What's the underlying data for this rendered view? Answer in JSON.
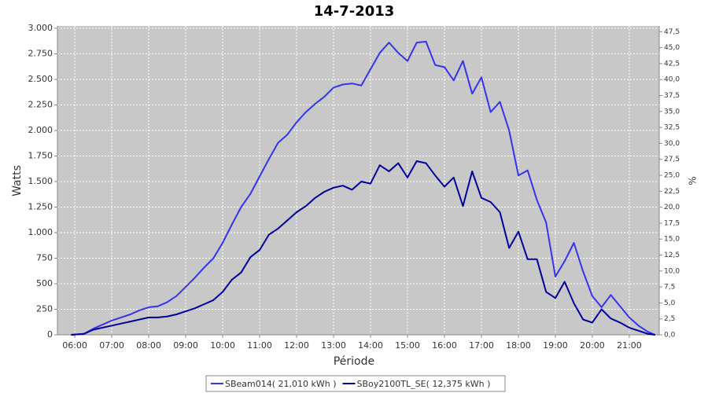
{
  "chart_data": {
    "type": "line",
    "title": "14-7-2013",
    "xlabel": "Période",
    "ylabel": "Watts",
    "y2label": "%",
    "x": [
      5.9,
      6.25,
      6.5,
      6.75,
      7,
      7.25,
      7.5,
      7.75,
      8,
      8.25,
      8.5,
      8.75,
      9,
      9.25,
      9.5,
      9.75,
      10,
      10.25,
      10.5,
      10.75,
      11,
      11.25,
      11.5,
      11.75,
      12,
      12.25,
      12.5,
      12.75,
      13,
      13.25,
      13.5,
      13.75,
      14,
      14.25,
      14.5,
      14.75,
      15,
      15.25,
      15.5,
      15.75,
      16,
      16.25,
      16.5,
      16.75,
      17,
      17.25,
      17.5,
      17.75,
      18,
      18.25,
      18.5,
      18.75,
      19,
      19.25,
      19.5,
      19.75,
      20,
      20.25,
      20.5,
      20.75,
      21,
      21.25,
      21.5,
      21.7
    ],
    "series": [
      {
        "name": "SBeam014( 21,010 kWh )",
        "color": "#3434f0",
        "values": [
          0,
          10,
          60,
          100,
          140,
          170,
          200,
          240,
          270,
          280,
          320,
          380,
          470,
          560,
          660,
          750,
          900,
          1080,
          1250,
          1380,
          1550,
          1720,
          1880,
          1960,
          2080,
          2180,
          2260,
          2330,
          2420,
          2450,
          2460,
          2440,
          2600,
          2760,
          2860,
          2760,
          2680,
          2860,
          2870,
          2640,
          2620,
          2490,
          2680,
          2360,
          2520,
          2180,
          2280,
          2000,
          1560,
          1610,
          1320,
          1100,
          570,
          720,
          900,
          620,
          380,
          270,
          390,
          280,
          170,
          90,
          30,
          0
        ]
      },
      {
        "name": "SBoy2100TL_SE( 12,375 kWh )",
        "color": "#00009c",
        "values": [
          0,
          10,
          50,
          70,
          90,
          110,
          130,
          150,
          170,
          170,
          180,
          200,
          230,
          260,
          300,
          340,
          420,
          540,
          610,
          760,
          830,
          980,
          1040,
          1120,
          1200,
          1260,
          1340,
          1400,
          1440,
          1460,
          1420,
          1500,
          1480,
          1660,
          1600,
          1680,
          1540,
          1700,
          1680,
          1560,
          1450,
          1540,
          1260,
          1600,
          1340,
          1300,
          1200,
          850,
          1010,
          740,
          740,
          420,
          360,
          520,
          310,
          150,
          120,
          250,
          160,
          120,
          70,
          40,
          10,
          0
        ]
      }
    ],
    "xlim": [
      5.53,
      21.81
    ],
    "xticks": [
      {
        "value": 6,
        "label": "06:00"
      },
      {
        "value": 7,
        "label": "07:00"
      },
      {
        "value": 8,
        "label": "08:00"
      },
      {
        "value": 9,
        "label": "09:00"
      },
      {
        "value": 10,
        "label": "10:00"
      },
      {
        "value": 11,
        "label": "11:00"
      },
      {
        "value": 12,
        "label": "12:00"
      },
      {
        "value": 13,
        "label": "13:00"
      },
      {
        "value": 14,
        "label": "14:00"
      },
      {
        "value": 15,
        "label": "15:00"
      },
      {
        "value": 16,
        "label": "16:00"
      },
      {
        "value": 17,
        "label": "17:00"
      },
      {
        "value": 18,
        "label": "18:00"
      },
      {
        "value": 19,
        "label": "19:00"
      },
      {
        "value": 20,
        "label": "20:00"
      },
      {
        "value": 21,
        "label": "21:00"
      }
    ],
    "ylim": [
      0,
      3023
    ],
    "yticks": [
      0,
      250,
      500,
      750,
      {
        "value": 1000,
        "label": "1.000"
      },
      {
        "value": 1250,
        "label": "1.250"
      },
      {
        "value": 1500,
        "label": "1.500"
      },
      {
        "value": 1750,
        "label": "1.750"
      },
      {
        "value": 2000,
        "label": "2.000"
      },
      {
        "value": 2250,
        "label": "2.250"
      },
      {
        "value": 2500,
        "label": "2.500"
      },
      {
        "value": 2750,
        "label": "2.750"
      },
      {
        "value": 3000,
        "label": "3.000"
      }
    ],
    "y2lim": [
      0,
      48.4
    ],
    "y2ticks": [
      {
        "value": 0,
        "label": "0,0"
      },
      {
        "value": 2.5,
        "label": "2,5"
      },
      {
        "value": 5,
        "label": "5,0"
      },
      {
        "value": 7.5,
        "label": "7,5"
      },
      {
        "value": 10,
        "label": "10,0"
      },
      {
        "value": 12.5,
        "label": "12,5"
      },
      {
        "value": 15,
        "label": "15,0"
      },
      {
        "value": 17.5,
        "label": "17,5"
      },
      {
        "value": 20,
        "label": "20,0"
      },
      {
        "value": 22.5,
        "label": "22,5"
      },
      {
        "value": 25,
        "label": "25,0"
      },
      {
        "value": 27.5,
        "label": "27,5"
      },
      {
        "value": 30,
        "label": "30,0"
      },
      {
        "value": 32.5,
        "label": "32,5"
      },
      {
        "value": 35,
        "label": "35,0"
      },
      {
        "value": 37.5,
        "label": "37,5"
      },
      {
        "value": 40,
        "label": "40,0"
      },
      {
        "value": 42.5,
        "label": "42,5"
      },
      {
        "value": 45,
        "label": "45,0"
      },
      {
        "value": 47.5,
        "label": "47,5"
      }
    ],
    "grid": true,
    "legend": "bottom"
  }
}
